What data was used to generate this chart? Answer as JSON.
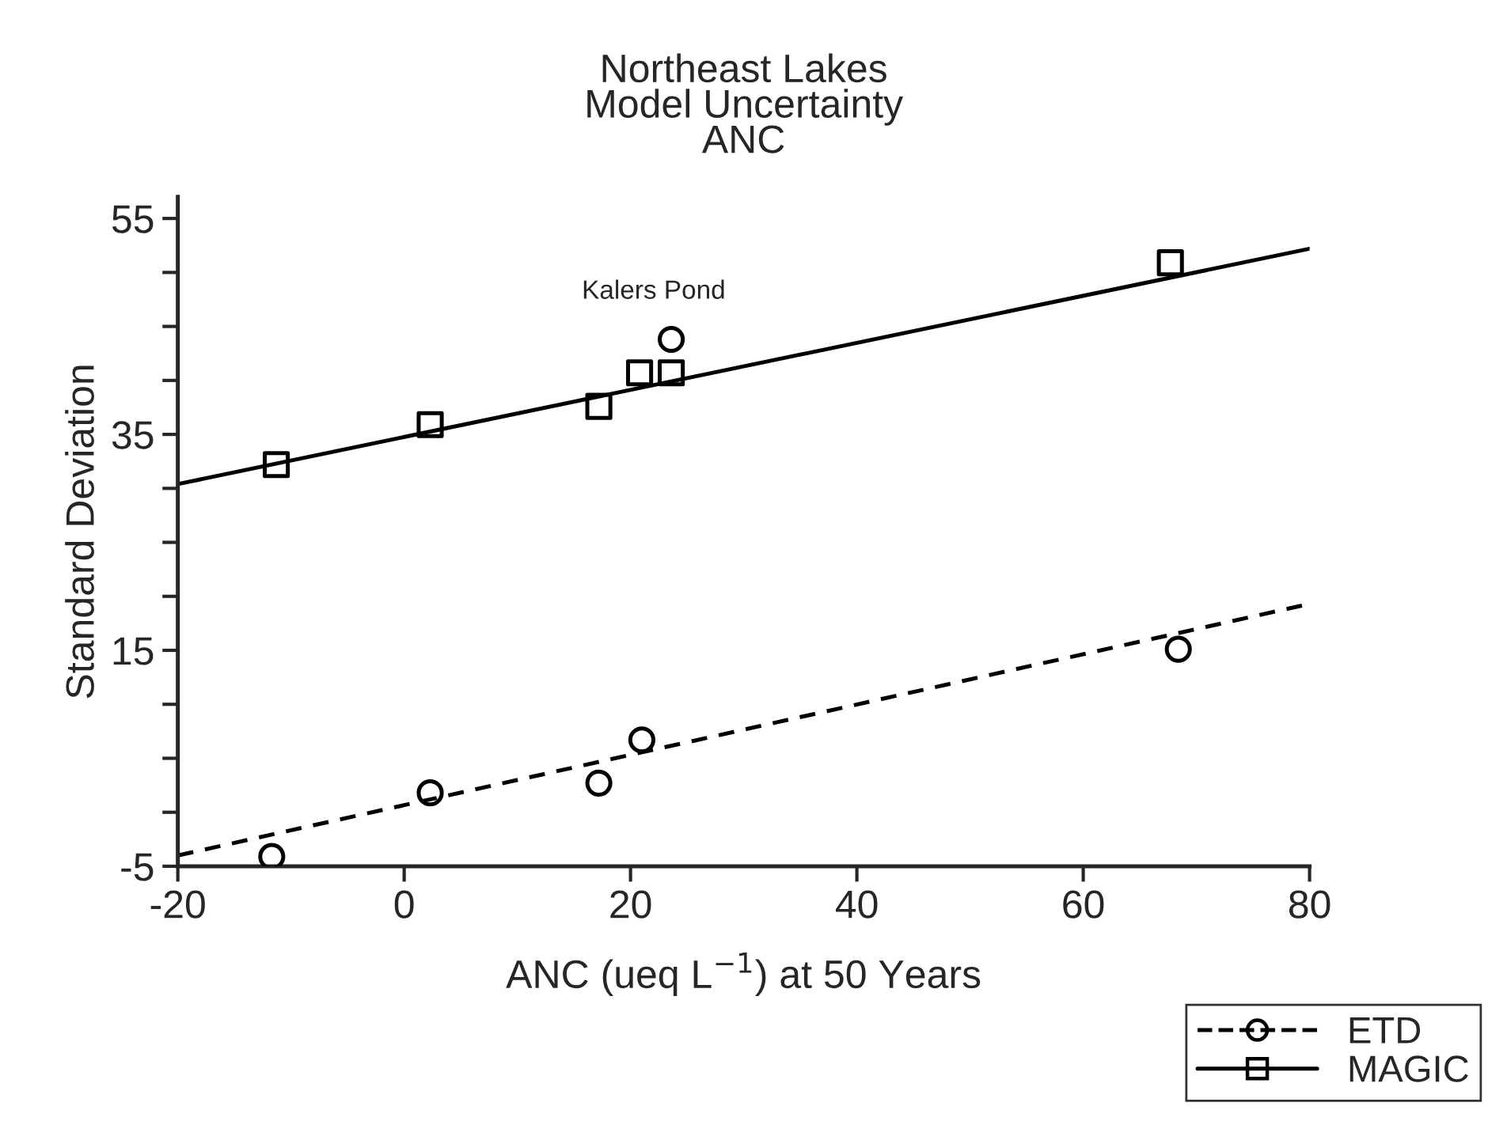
{
  "chart_data": {
    "type": "scatter",
    "title": "Northeast Lakes\nModel Uncertainty\nANC",
    "xlabel": "ANC (ueq L$^{−1}$) at 50 Years",
    "ylabel": "Standard Deviation",
    "xlim": [
      -20,
      80
    ],
    "xticks": [
      -20,
      0,
      20,
      40,
      60,
      80
    ],
    "ylim": [
      -5,
      57
    ],
    "yticks": [
      -5,
      {
        "value": 0,
        "label": null
      },
      {
        "value": 5,
        "label": null
      },
      {
        "value": 10,
        "label": null
      },
      15,
      {
        "value": 20,
        "label": null
      },
      {
        "value": 25,
        "label": null
      },
      {
        "value": 30,
        "label": null
      },
      35,
      {
        "value": 40,
        "label": null
      },
      {
        "value": 45,
        "label": null
      },
      {
        "value": 50,
        "label": null
      },
      55
    ],
    "grid": false,
    "legend": "bottom right",
    "series": [
      {
        "name": "ETD",
        "marker": "circle",
        "color": "#000000",
        "x": [
          -11.7,
          2.3,
          17.2,
          21.0,
          68.4,
          23.6
        ],
        "values": [
          -4.1,
          1.8,
          2.7,
          6.7,
          15.1,
          43.8
        ]
      },
      {
        "type": "line",
        "line_style": "dashed",
        "color": "#000000",
        "x": [
          -20,
          80
        ],
        "values": [
          -4.0,
          19.3
        ]
      },
      {
        "name": "MAGIC",
        "marker": "square",
        "color": "#000000",
        "x": [
          -11.3,
          2.3,
          17.2,
          20.8,
          23.6,
          67.7
        ],
        "values": [
          32.2,
          35.9,
          37.6,
          40.7,
          40.7,
          50.9
        ]
      },
      {
        "type": "line",
        "line_style": "solid",
        "color": "#000000",
        "x": [
          -20,
          80
        ],
        "values": [
          30.4,
          52.2
        ]
      }
    ],
    "annotations": [
      {
        "text": "Kalers Pond",
        "x": 23.6,
        "y": 43.8
      }
    ]
  }
}
